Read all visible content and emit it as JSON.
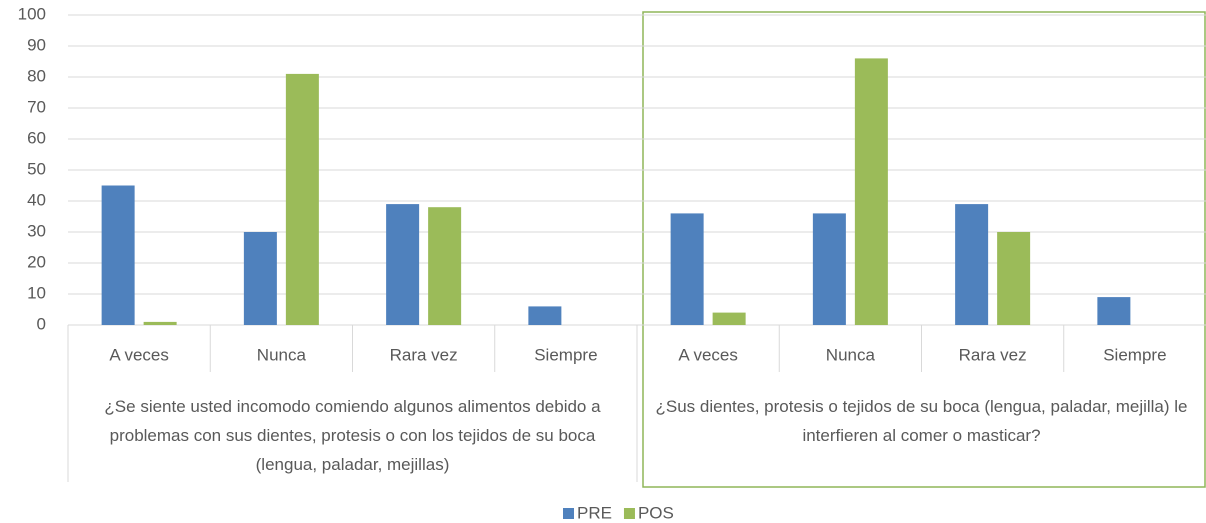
{
  "chart_data": {
    "type": "bar",
    "categories": [
      "A veces",
      "Nunca",
      "Rara vez",
      "Siempre",
      "A veces",
      "Nunca",
      "Rara vez",
      "Siempre"
    ],
    "groups": [
      "¿Se siente usted incomodo comiendo algunos alimentos debido a problemas con sus dientes, protesis o con los tejidos de su boca (lengua, paladar, mejillas)",
      "¿Sus dientes, protesis o tejidos de su boca (lengua, paladar, mejilla) le interfieren al comer o masticar?"
    ],
    "series": [
      {
        "name": "PRE",
        "color": "#4f81bd",
        "values": [
          45,
          30,
          39,
          6,
          36,
          36,
          39,
          9
        ]
      },
      {
        "name": "POS",
        "color": "#9bbb59",
        "values": [
          1,
          81,
          38,
          0,
          4,
          86,
          30,
          0
        ]
      }
    ],
    "ylim": [
      0,
      100
    ],
    "yticks": [
      0,
      10,
      20,
      30,
      40,
      50,
      60,
      70,
      80,
      90,
      100
    ],
    "grid": true,
    "legend": "bottom"
  }
}
